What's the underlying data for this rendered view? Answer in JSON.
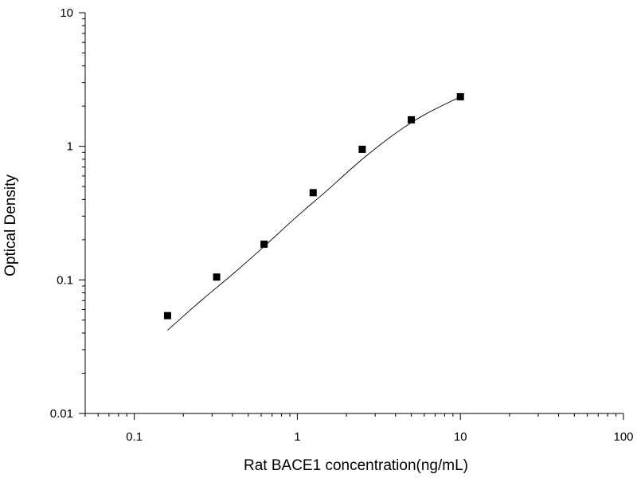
{
  "chart_data": {
    "type": "scatter",
    "title": "",
    "xlabel": "Rat BACE1 concentration(ng/mL)",
    "ylabel": "Optical Density",
    "x_scale": "log",
    "y_scale": "log",
    "xlim": [
      0.05,
      100
    ],
    "ylim": [
      0.01,
      10
    ],
    "x_ticks": [
      {
        "value": 0.1,
        "label": "0.1"
      },
      {
        "value": 1,
        "label": "1"
      },
      {
        "value": 10,
        "label": "10"
      },
      {
        "value": 100,
        "label": "100"
      }
    ],
    "y_ticks": [
      {
        "value": 0.01,
        "label": "0.01"
      },
      {
        "value": 0.1,
        "label": "0.1"
      },
      {
        "value": 1,
        "label": "1"
      },
      {
        "value": 10,
        "label": "10"
      }
    ],
    "grid": false,
    "legend": "none",
    "marker_color": "#000000",
    "line_color": "#000000",
    "series": [
      {
        "x": [
          0.16,
          0.32,
          0.625,
          1.25,
          2.5,
          5,
          10
        ],
        "y": [
          0.054,
          0.105,
          0.185,
          0.45,
          0.95,
          1.58,
          2.35
        ]
      }
    ],
    "fit_curve": {
      "x": [
        0.16,
        0.25,
        0.4,
        0.6,
        1.0,
        1.5,
        2.5,
        4.0,
        6.0,
        10
      ],
      "y": [
        0.042,
        0.068,
        0.11,
        0.17,
        0.3,
        0.46,
        0.8,
        1.25,
        1.72,
        2.35
      ]
    }
  }
}
